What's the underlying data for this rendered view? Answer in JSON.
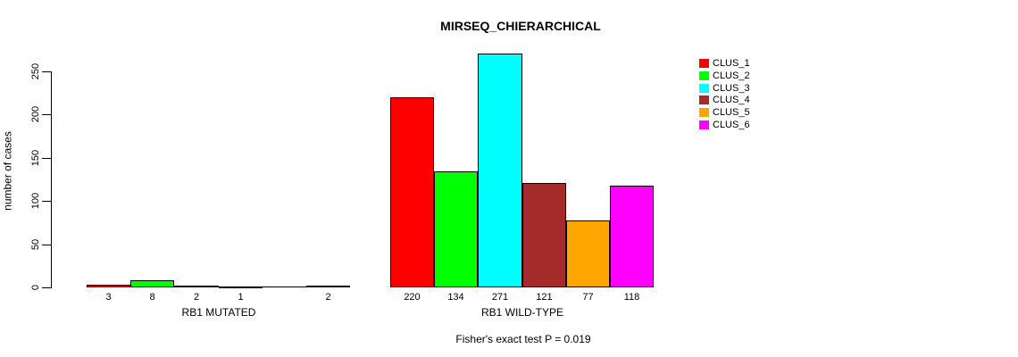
{
  "chart_data": {
    "type": "bar",
    "title": "MIRSEQ_CHIERARCHICAL",
    "ylabel": "number of cases",
    "xlabel": "",
    "ylim": [
      0,
      250
    ],
    "yticks": [
      0,
      50,
      100,
      150,
      200,
      250
    ],
    "grid": false,
    "legend_position": "right",
    "annotation": "Fisher's exact test P = 0.019",
    "series": [
      {
        "name": "CLUS_1",
        "color": "#FF0000"
      },
      {
        "name": "CLUS_2",
        "color": "#00FF00"
      },
      {
        "name": "CLUS_3",
        "color": "#00FFFF"
      },
      {
        "name": "CLUS_4",
        "color": "#A52A2A"
      },
      {
        "name": "CLUS_5",
        "color": "#FFA500"
      },
      {
        "name": "CLUS_6",
        "color": "#FF00FF"
      }
    ],
    "groups": [
      {
        "label": "RB1 MUTATED",
        "values": [
          3,
          8,
          2,
          1,
          0,
          2
        ],
        "value_labels": [
          "3",
          "8",
          "2",
          "1",
          "",
          "2"
        ]
      },
      {
        "label": "RB1 WILD-TYPE",
        "values": [
          220,
          134,
          271,
          121,
          77,
          118
        ],
        "value_labels": [
          "220",
          "134",
          "271",
          "121",
          "77",
          "118"
        ]
      }
    ]
  }
}
